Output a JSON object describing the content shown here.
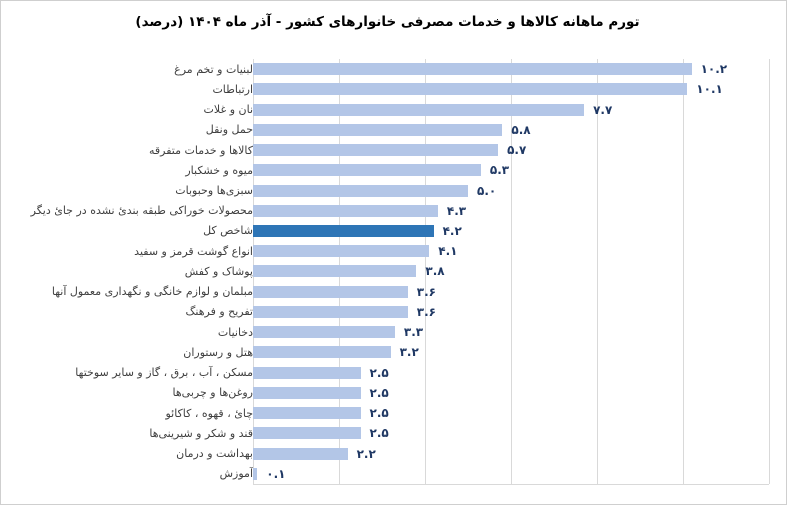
{
  "title": "تورم ماهانه کالاها و خدمات مصرفی خانوارهای کشور - آذر ماه ۱۴۰۴ (درصد)",
  "chart_data": {
    "type": "bar",
    "orientation": "horizontal",
    "title": "تورم ماهانه کالاها و خدمات مصرفی خانوارهای کشور - آذر ماه ۱۴۰۴ (درصد)",
    "categories": [
      "لبنیات و تخم مرغ",
      "ارتباطات",
      "نان و غلات",
      "حمل ونقل",
      "کالاها و خدمات متفرقه",
      "میوه و خشکبار",
      "سبزی‌ها وحبوبات",
      "محصولات خوراکی طبقه بندئ نشده در جائ دیگر",
      "شاخص کل",
      "انواع گوشت قرمز و سفید",
      "پوشاک و کفش",
      "مبلمان و لوازم خانگی و نگهداری معمول آنها",
      "تفریح و فرهنگ",
      "دخانیات",
      "هتل و رستوران",
      "مسکن ، آب ، برق ، گاز و سایر سوختها",
      "روغن‌ها و چربی‌ها",
      "چائ ، قهوه ، کاکائو",
      "قند و شکر و شیرینی‌ها",
      "بهداشت و درمان",
      "آموزش"
    ],
    "values": [
      10.2,
      10.1,
      7.7,
      5.8,
      5.7,
      5.3,
      5.0,
      4.3,
      4.2,
      4.1,
      3.8,
      3.6,
      3.6,
      3.3,
      3.2,
      2.5,
      2.5,
      2.5,
      2.5,
      2.2,
      0.1
    ],
    "value_labels": [
      "۱۰.۲",
      "۱۰.۱",
      "۷.۷",
      "۵.۸",
      "۵.۷",
      "۵.۳",
      "۵.۰",
      "۴.۳",
      "۴.۲",
      "۴.۱",
      "۳.۸",
      "۳.۶",
      "۳.۶",
      "۳.۳",
      "۳.۲",
      "۲.۵",
      "۲.۵",
      "۲.۵",
      "۲.۵",
      "۲.۲",
      "۰.۱"
    ],
    "highlight_category": "شاخص کل",
    "highlight_index": 8,
    "xlim": [
      0,
      12
    ],
    "gridline_step": 2,
    "grid": true,
    "legend": false,
    "colors": {
      "bar": "#b3c6e7",
      "highlight_bar": "#2e75b6",
      "gridline": "#d9d9d9",
      "value_text": "#1f3864",
      "category_text": "#3f3f3f",
      "title_text": "#000000"
    }
  }
}
